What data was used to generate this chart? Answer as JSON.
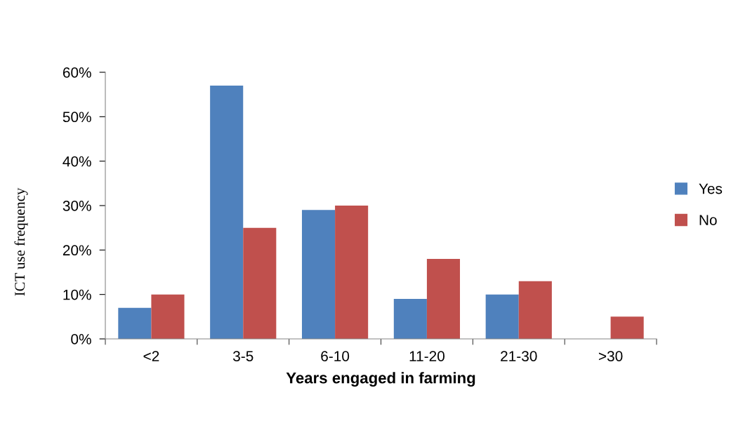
{
  "chart_data": {
    "type": "bar",
    "xlabel": "Years engaged in farming",
    "ylabel": "ICT use frequency",
    "categories": [
      "<2",
      "3-5",
      "6-10",
      "11-20",
      "21-30",
      ">30"
    ],
    "series": [
      {
        "name": "Yes",
        "color": "#4f81bd",
        "values": [
          7,
          57,
          29,
          9,
          10,
          0
        ]
      },
      {
        "name": "No",
        "color": "#c0504d",
        "values": [
          10,
          25,
          30,
          18,
          13,
          5
        ]
      }
    ],
    "ylim": [
      0,
      60
    ],
    "yticks": [
      {
        "value": 0,
        "label": "0%"
      },
      {
        "value": 10,
        "label": "10%"
      },
      {
        "value": 20,
        "label": "20%"
      },
      {
        "value": 30,
        "label": "30%"
      },
      {
        "value": 40,
        "label": "40%"
      },
      {
        "value": 50,
        "label": "50%"
      },
      {
        "value": 60,
        "label": "60%"
      }
    ],
    "grid": false,
    "legend": "right"
  }
}
